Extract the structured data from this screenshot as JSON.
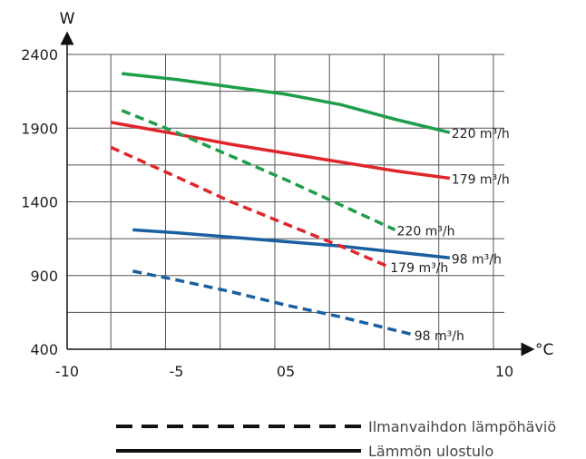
{
  "chart_data": {
    "type": "line",
    "xlabel": "°C",
    "ylabel": "W",
    "x_ticks": [
      "-10",
      "-5",
      "05",
      "10"
    ],
    "y_ticks": [
      "400",
      "900",
      "1400",
      "1900",
      "2400"
    ],
    "xlim": [
      -10,
      10
    ],
    "ylim": [
      400,
      2400
    ],
    "grid": true,
    "series": [
      {
        "name": "220 m³/h",
        "style": "solid",
        "color": "#1e9e4a",
        "x": [
          -7.5,
          -5,
          -2.5,
          0,
          2.5,
          5,
          7.5
        ],
        "y": [
          2270,
          2230,
          2180,
          2130,
          2060,
          1960,
          1870
        ]
      },
      {
        "name": "179 m³/h",
        "style": "solid",
        "color": "#e0262b",
        "x": [
          -8,
          -5,
          -2.5,
          0,
          2.5,
          5,
          7.5
        ],
        "y": [
          1940,
          1860,
          1790,
          1730,
          1670,
          1610,
          1560
        ]
      },
      {
        "name": "98 m³/h",
        "style": "solid",
        "color": "#1a5fa0",
        "x": [
          -7,
          -5,
          -2.5,
          0,
          2.5,
          5,
          7.5
        ],
        "y": [
          1210,
          1190,
          1160,
          1130,
          1100,
          1060,
          1020
        ]
      },
      {
        "name": "220 m³/h",
        "style": "dashed",
        "color": "#1e9e4a",
        "x": [
          -7.5,
          -5,
          -2.5,
          0,
          2.5,
          5
        ],
        "y": [
          2020,
          1870,
          1710,
          1550,
          1380,
          1210
        ]
      },
      {
        "name": "179 m³/h",
        "style": "dashed",
        "color": "#e0262b",
        "x": [
          -8,
          -5,
          -2.5,
          0,
          2.5,
          4.7
        ],
        "y": [
          1770,
          1570,
          1400,
          1250,
          1100,
          960
        ]
      },
      {
        "name": "98 m³/h",
        "style": "dashed",
        "color": "#1a5fa0",
        "x": [
          -7,
          -5,
          -2.5,
          0,
          2.5,
          5.8
        ],
        "y": [
          930,
          870,
          790,
          700,
          620,
          500
        ]
      }
    ],
    "legend": [
      {
        "style": "dashed",
        "label": "Ilmanvaihdon lämpöhäviö"
      },
      {
        "style": "solid",
        "label": "Lämmön ulostulo"
      }
    ]
  }
}
